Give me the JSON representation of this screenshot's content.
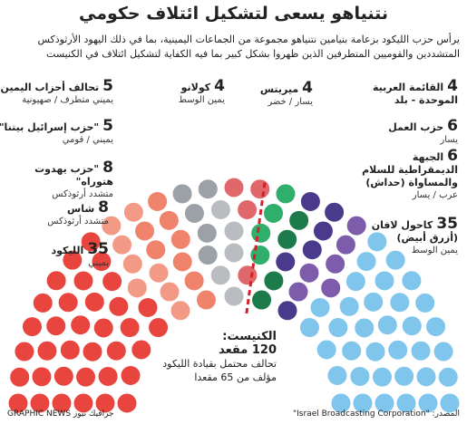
{
  "chart_data": {
    "type": "parliament",
    "title": "نتنياهو يسعى لتشكيل ائتلاف حكومي",
    "subtitle": "يرأس حزب الليكود بزعامة بنيامين نتنياهو مجموعة من الجماعات اليمينية، بما في ذلك اليهود الأرثوذكس المتشددين والقوميين المتطرفين الذين ظهروا بشكل كبير بما فيه الكفاية لتشكيل ائتلاف في الكنيست",
    "parties": [
      {
        "name": "الليكود",
        "seats": 35,
        "description": "يميني",
        "color": "#e8453f"
      },
      {
        "name": "شاس",
        "seats": 8,
        "description": "متشدد أرثوذكس",
        "color": "#f29a86"
      },
      {
        "name": "\"حزب يهدوت هتوراه\"",
        "seats": 8,
        "description": "متشدد أرثوذكس",
        "color": "#f0836c"
      },
      {
        "name": "\"حزب إسرائيل بيتنا\"",
        "seats": 5,
        "description": "يميني / قومي",
        "color": "#9ca1a8"
      },
      {
        "name": "تحالف أحزاب اليمين",
        "seats": 5,
        "description": "يميني متطرف / صهيونية",
        "color": "#b9bcc1"
      },
      {
        "name": "كولانو",
        "seats": 4,
        "description": "يمين الوسط",
        "color": "#e0676a"
      },
      {
        "name": "ميريتس",
        "seats": 4,
        "description": "يسار / خضر",
        "color": "#2fae6c"
      },
      {
        "name": "القائمة العربية الموحدة - بلد",
        "seats": 4,
        "color": "#1d7a4b"
      },
      {
        "name": "حزب العمل",
        "seats": 6,
        "description": "يسار",
        "color": "#4a3a8c"
      },
      {
        "name": "الجبهة الديمقراطية للسلام والمساواة (حداش)",
        "seats": 6,
        "description": "عرب / يسار",
        "color": "#7d5cab"
      },
      {
        "name": "كاحول لافان (أزرق أبيض)",
        "seats": 35,
        "description": "يمين الوسط",
        "color": "#7fc5ec"
      }
    ],
    "total_label": "الكنيست:",
    "total_seats": 120,
    "total_unit": "مقعد",
    "coalition_note": "تحالف محتمل بقيادة الليكود مؤلف من 65 مقعدا",
    "source": "المصدر: \"Israel Broadcasting Corporation\"",
    "credit": "GRAPHIC NEWS جرافيك نيوز"
  }
}
